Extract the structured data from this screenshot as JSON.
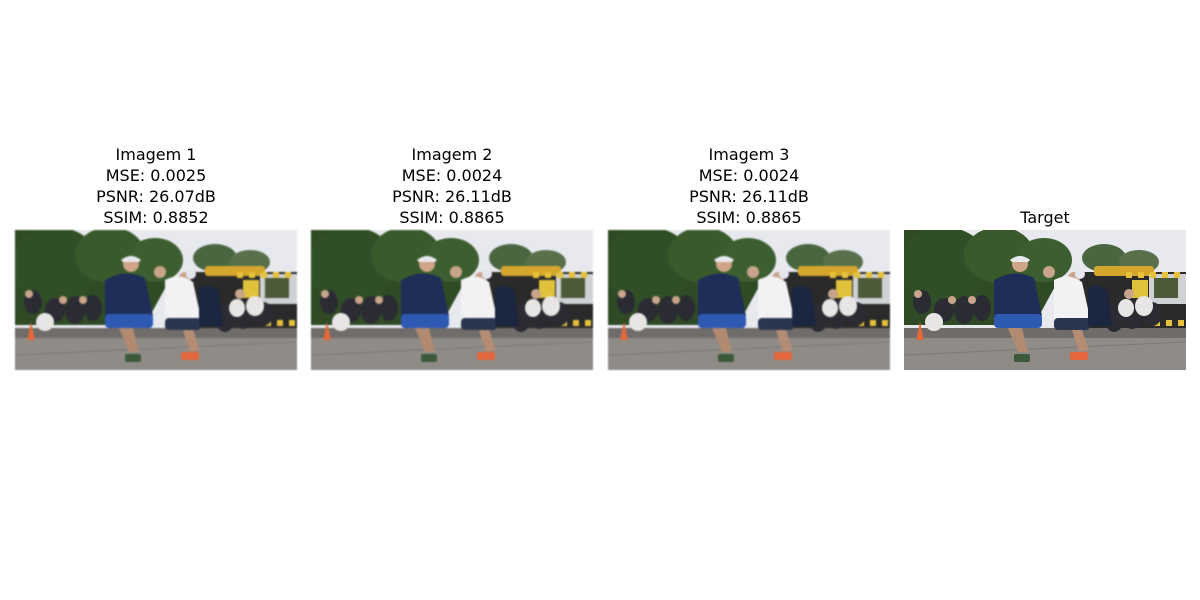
{
  "panels": [
    {
      "title": "Imagem 1",
      "mse": "MSE: 0.0025",
      "psnr": "PSNR: 26.07dB",
      "ssim": "SSIM: 0.8852"
    },
    {
      "title": "Imagem 2",
      "mse": "MSE: 0.0024",
      "psnr": "PSNR: 26.11dB",
      "ssim": "SSIM: 0.8865"
    },
    {
      "title": "Imagem 3",
      "mse": "MSE: 0.0024",
      "psnr": "PSNR: 26.11dB",
      "ssim": "SSIM: 0.8865"
    },
    {
      "title": "Target"
    }
  ],
  "colors": {
    "sky": "#e6e8ee",
    "trees": "#2e4a24",
    "road": "#8e8a86",
    "tram_yellow": "#d8a82a",
    "navy_shirt": "#1d2d55",
    "white_shirt": "#f1f1f3",
    "blue_shorts": "#2e58b0",
    "orange_shoes": "#e5653c"
  }
}
